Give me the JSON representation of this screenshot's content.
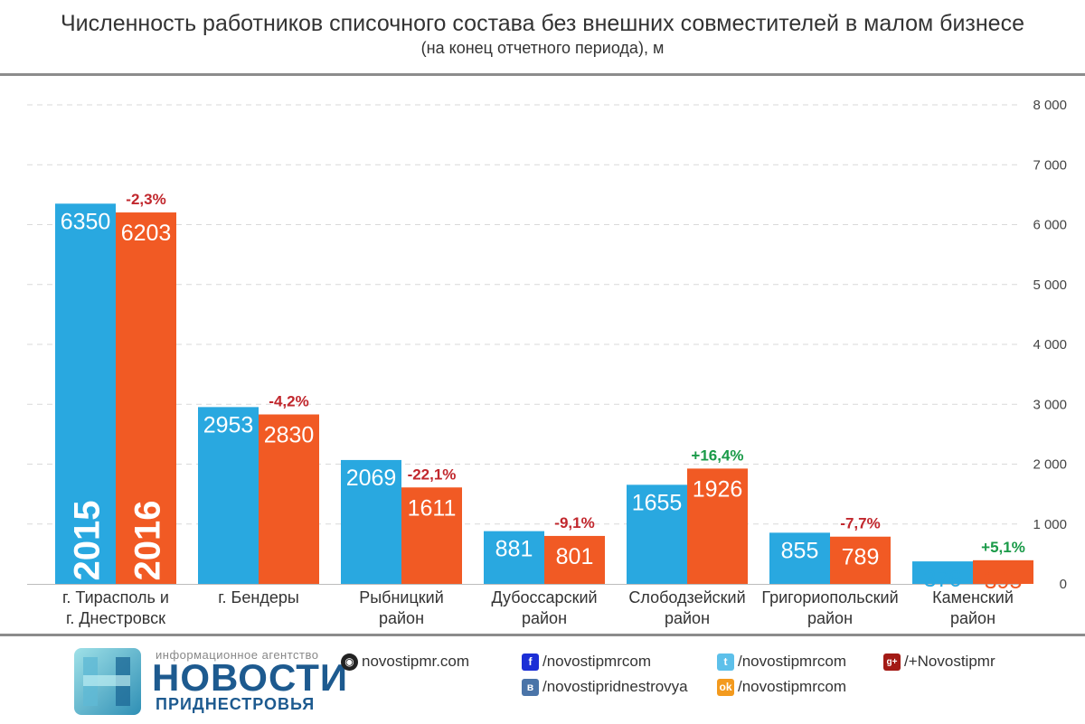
{
  "chart_data": {
    "type": "bar",
    "title": "Численность работников списочного состава без внешних совместителей в малом бизнесе",
    "subtitle": "(на конец отчетного периода), м",
    "categories": [
      [
        "г. Тирасполь и",
        "г. Днестровск"
      ],
      [
        "г. Бендеры"
      ],
      [
        "Рыбницкий",
        "район"
      ],
      [
        "Дубоссарский",
        "район"
      ],
      [
        "Слободзейский",
        "район"
      ],
      [
        "Григориопольский",
        "район"
      ],
      [
        "Каменский",
        "район"
      ]
    ],
    "series": [
      {
        "name": "2015",
        "color": "#29a8e0",
        "values": [
          6350,
          2953,
          2069,
          881,
          1655,
          855,
          376
        ]
      },
      {
        "name": "2016",
        "color": "#f15a24",
        "values": [
          6203,
          2830,
          1611,
          801,
          1926,
          789,
          395
        ]
      }
    ],
    "changes": [
      "-2,3%",
      "-4,2%",
      "-22,1%",
      "-9,1%",
      "+16,4%",
      "-7,7%",
      "+5,1%"
    ],
    "change_colors": {
      "negative": "#c1272d",
      "positive": "#1a9a48"
    },
    "yticks": [
      0,
      1000,
      2000,
      3000,
      4000,
      5000,
      6000,
      7000,
      8000
    ],
    "ytick_labels": [
      "0",
      "1 000",
      "2 000",
      "3 000",
      "4 000",
      "5 000",
      "6 000",
      "7 000",
      "8 000"
    ],
    "ylim": [
      0,
      8000
    ],
    "grid": true,
    "legend": "labels inside first group bars"
  },
  "footer": {
    "agency_small": "информационное агентство",
    "agency_big": "НОВОСТИ",
    "agency_sub": "ПРИДНЕСТРОВЬЯ",
    "site": "novostipmr.com",
    "facebook": "/novostipmrcom",
    "twitter": "/novostipmrcom",
    "googleplus": "/+Novostipmr",
    "vk": "/novostipridnestrovya",
    "ok": "/novostipmrcom"
  },
  "icons": {
    "site": "globe-icon",
    "facebook": "facebook-icon",
    "twitter": "twitter-icon",
    "googleplus": "googleplus-icon",
    "vk": "vk-icon",
    "ok": "odnoklassniki-icon"
  }
}
